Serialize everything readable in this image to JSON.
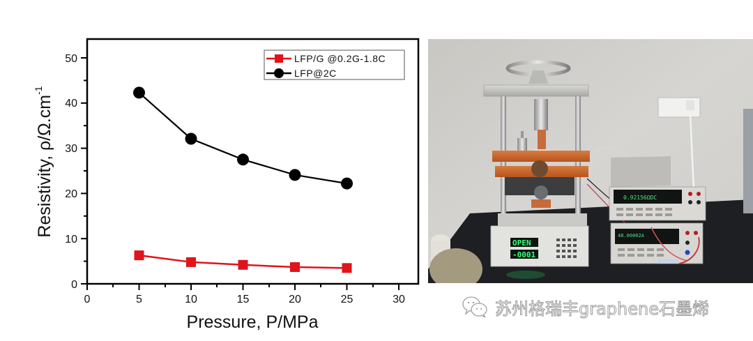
{
  "chart_data": {
    "type": "line",
    "title": "",
    "xlabel": "Pressure, P/MPa",
    "ylabel": "Resistivity, ρ/Ω.cm",
    "ylabel_superscript": "-1",
    "xlim": [
      0,
      32
    ],
    "ylim": [
      0,
      54
    ],
    "x_ticks": [
      0,
      5,
      10,
      15,
      20,
      25,
      30
    ],
    "y_ticks": [
      0,
      10,
      20,
      30,
      40,
      50
    ],
    "grid": false,
    "legend_position": "upper right",
    "x": [
      5,
      10,
      15,
      20,
      25
    ],
    "series": [
      {
        "name": "LFP/G @0.2G-1.8C",
        "marker": "square",
        "color": "#e0141b",
        "values": [
          6.3,
          4.8,
          4.2,
          3.7,
          3.5
        ]
      },
      {
        "name": "LFP@2C",
        "marker": "circle",
        "color": "#000000",
        "values": [
          42.3,
          32.1,
          27.5,
          24.1,
          22.2
        ]
      }
    ]
  },
  "chart": {
    "xlabel": "Pressure, P/MPa",
    "ylabel_main": "Resistivity, ρ/Ω.cm",
    "ylabel_sup": "-1",
    "x_tick_labels": [
      "0",
      "5",
      "10",
      "15",
      "20",
      "25",
      "30"
    ],
    "y_tick_labels": [
      "0",
      "10",
      "20",
      "30",
      "40",
      "50"
    ],
    "legend": [
      {
        "label": "LFP/G @0.2G-1.8C"
      },
      {
        "label": "LFP@2C"
      }
    ]
  },
  "photo": {
    "description": "Powder resistivity tester with hand-wheel press and two bench multimeters",
    "tester_display_top": "OPEN",
    "tester_display_bottom": "-0001",
    "meter1_display": "0.92156ΩDC",
    "meter2_display": "48.00002A"
  },
  "watermark": {
    "text": "苏州格瑞丰graphene石墨烯",
    "icon": "wechat-icon"
  }
}
